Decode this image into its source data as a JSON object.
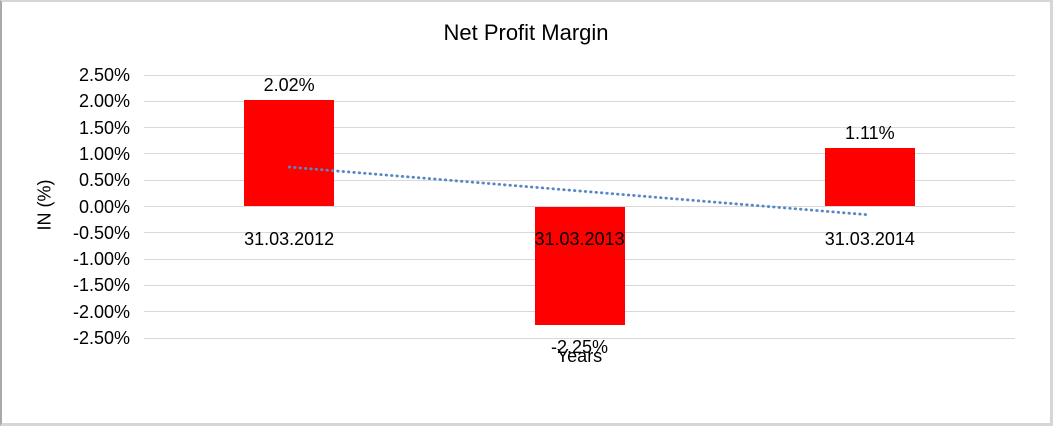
{
  "frame": {
    "background": "#ffffff",
    "border_color": "#d6d6d6"
  },
  "chart_data": {
    "type": "bar",
    "title": "Net Profit Margin",
    "xlabel": "Years",
    "ylabel": "IN (%)",
    "categories": [
      "31.03.2012",
      "31.03.2013",
      "31.03.2014"
    ],
    "series": [
      {
        "name": "Net Profit Margin",
        "values": [
          2.02,
          -2.25,
          1.11
        ],
        "data_labels": [
          "2.02%",
          "-2.25%",
          "1.11%"
        ],
        "color": "#ff0000"
      }
    ],
    "ylim": [
      -2.5,
      2.5
    ],
    "ytick_step": 0.5,
    "ytick_labels": [
      "2.50%",
      "2.00%",
      "1.50%",
      "1.00%",
      "0.50%",
      "0.00%",
      "-0.50%",
      "-1.00%",
      "-1.50%",
      "-2.00%",
      "-2.50%"
    ],
    "grid": "horizontal",
    "gridline_color": "#d9d9d9",
    "legend": "none",
    "trendline": {
      "type": "linear",
      "style": "dotted",
      "color": "#5588c5",
      "start_value": 0.75,
      "end_value": -0.16
    }
  }
}
